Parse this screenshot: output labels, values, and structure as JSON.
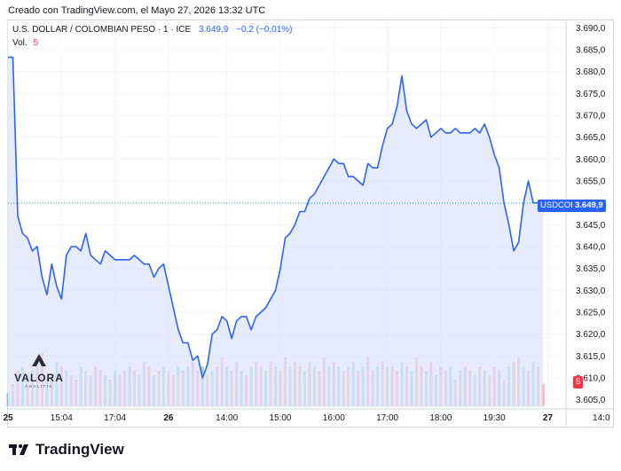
{
  "header": {
    "created_text": "Creado con TradingView.com, el Mayo 27, 2026 13:32 UTC"
  },
  "legend": {
    "symbol_text": "U.S. DOLLAR / COLOMBIAN PESO · 1 · ICE",
    "price_text": "3.649,9",
    "change_text": "−0,2 (−0,01%)",
    "volume_label": "Vol.",
    "volume_value": "5"
  },
  "tags": {
    "symbol": "USDCOP",
    "price": "3.649,9",
    "volume": "5"
  },
  "watermark": {
    "name": "VALORA",
    "subtitle": "ANALITIK"
  },
  "brand": {
    "name": "TradingView"
  },
  "colors": {
    "line": "#2962ff",
    "fill": "#dbe4fd",
    "vol_up": "#26a69a",
    "vol_down": "#ef5350",
    "grid": "#f0f3fa",
    "current_price_line": "#26a69a"
  },
  "chart_data": {
    "type": "area",
    "title": "U.S. DOLLAR / COLOMBIAN PESO · 1 · ICE",
    "xlabel": "",
    "ylabel": "",
    "ylim": [
      3603.3,
      3691.7
    ],
    "yticks": [
      "3.690,0",
      "3.685,0",
      "3.680,0",
      "3.675,0",
      "3.670,0",
      "3.665,0",
      "3.660,0",
      "3.655,0",
      "3.650,0",
      "3.645,0",
      "3.640,0",
      "3.635,0",
      "3.630,0",
      "3.625,0",
      "3.620,0",
      "3.615,0",
      "3.610,0",
      "3.605,0"
    ],
    "ytick_values": [
      3690,
      3685,
      3680,
      3675,
      3670,
      3665,
      3660,
      3655,
      3650,
      3645,
      3640,
      3635,
      3630,
      3625,
      3620,
      3615,
      3610,
      3605
    ],
    "xticks": [
      {
        "label": "25",
        "i": 0,
        "bold": true
      },
      {
        "label": "15:04",
        "i": 11,
        "bold": false
      },
      {
        "label": "17:04",
        "i": 22,
        "bold": false
      },
      {
        "label": "26",
        "i": 33,
        "bold": true
      },
      {
        "label": "14:00",
        "i": 45,
        "bold": false
      },
      {
        "label": "15:00",
        "i": 56,
        "bold": false
      },
      {
        "label": "16:00",
        "i": 67,
        "bold": false
      },
      {
        "label": "17:00",
        "i": 78,
        "bold": false
      },
      {
        "label": "18:00",
        "i": 89,
        "bold": false
      },
      {
        "label": "19:30",
        "i": 100,
        "bold": false
      },
      {
        "label": "27",
        "i": 111,
        "bold": true
      },
      {
        "label": "14:0",
        "i": 122,
        "bold": false
      }
    ],
    "current_price": 3649.9,
    "series": [
      {
        "values": [
          3683.3,
          3683.3,
          3647,
          3643,
          3642,
          3639,
          3640,
          3633,
          3629,
          3636,
          3631,
          3628,
          3638,
          3640,
          3640,
          3639,
          3643,
          3638,
          3637,
          3636,
          3639,
          3638,
          3637,
          3637,
          3637,
          3637,
          3638,
          3637,
          3636,
          3636,
          3633,
          3635,
          3636,
          3631,
          3626,
          3621,
          3618,
          3618,
          3614,
          3615,
          3610,
          3613,
          3620,
          3621,
          3624,
          3623,
          3619,
          3623,
          3624,
          3624,
          3621,
          3624,
          3625,
          3626,
          3628,
          3630,
          3635,
          3642,
          3643,
          3645,
          3648,
          3648,
          3651,
          3652,
          3654,
          3656,
          3658,
          3660,
          3659,
          3659,
          3656,
          3656,
          3655,
          3654,
          3659,
          3658,
          3658,
          3663,
          3667,
          3668,
          3672,
          3679,
          3671,
          3668,
          3667,
          3668,
          3669,
          3665,
          3666,
          3667,
          3666,
          3666,
          3667,
          3666,
          3666,
          3666,
          3667,
          3666,
          3668,
          3665,
          3661,
          3658,
          3650,
          3645,
          3639,
          3641,
          3650,
          3655,
          3650,
          3650,
          3649.9
        ],
        "volume": [
          3,
          5,
          8,
          9,
          7,
          8,
          9,
          12,
          6,
          7,
          10,
          9,
          8,
          7,
          6,
          9,
          8,
          7,
          9,
          8,
          7,
          6,
          8,
          7,
          8,
          9,
          8,
          7,
          10,
          9,
          7,
          8,
          9,
          8,
          7,
          9,
          8,
          9,
          10,
          8,
          9,
          7,
          8,
          9,
          11,
          9,
          8,
          10,
          8,
          7,
          9,
          10,
          9,
          8,
          10,
          9,
          8,
          11,
          9,
          10,
          9,
          8,
          10,
          9,
          8,
          11,
          9,
          10,
          9,
          8,
          9,
          10,
          8,
          9,
          11,
          8,
          9,
          10,
          9,
          9,
          8,
          10,
          9,
          8,
          11,
          9,
          8,
          10,
          7,
          9,
          8,
          9,
          6,
          8,
          9,
          8,
          7,
          9,
          8,
          7,
          9,
          8,
          6,
          9,
          10,
          11,
          9,
          8,
          10,
          9,
          5
        ],
        "volume_down": [
          0,
          1,
          1,
          0,
          1,
          0,
          1,
          1,
          0,
          1,
          0,
          1,
          0,
          1,
          1,
          0,
          1,
          0,
          1,
          1,
          0,
          1,
          0,
          1,
          1,
          0,
          1,
          0,
          1,
          1,
          0,
          1,
          0,
          1,
          1,
          0,
          1,
          0,
          1,
          1,
          0,
          1,
          0,
          1,
          1,
          0,
          1,
          1,
          0,
          1,
          0,
          1,
          1,
          0,
          1,
          0,
          1,
          1,
          0,
          1,
          1,
          0,
          1,
          0,
          1,
          1,
          0,
          1,
          0,
          1,
          1,
          0,
          1,
          0,
          1,
          1,
          0,
          1,
          0,
          1,
          1,
          0,
          1,
          0,
          1,
          1,
          0,
          1,
          0,
          1,
          1,
          0,
          1,
          0,
          1,
          1,
          0,
          1,
          0,
          1,
          1,
          0,
          1,
          0,
          1,
          1,
          0,
          1,
          0,
          1,
          1
        ]
      }
    ],
    "grid": true,
    "legend_position": "top-left"
  }
}
